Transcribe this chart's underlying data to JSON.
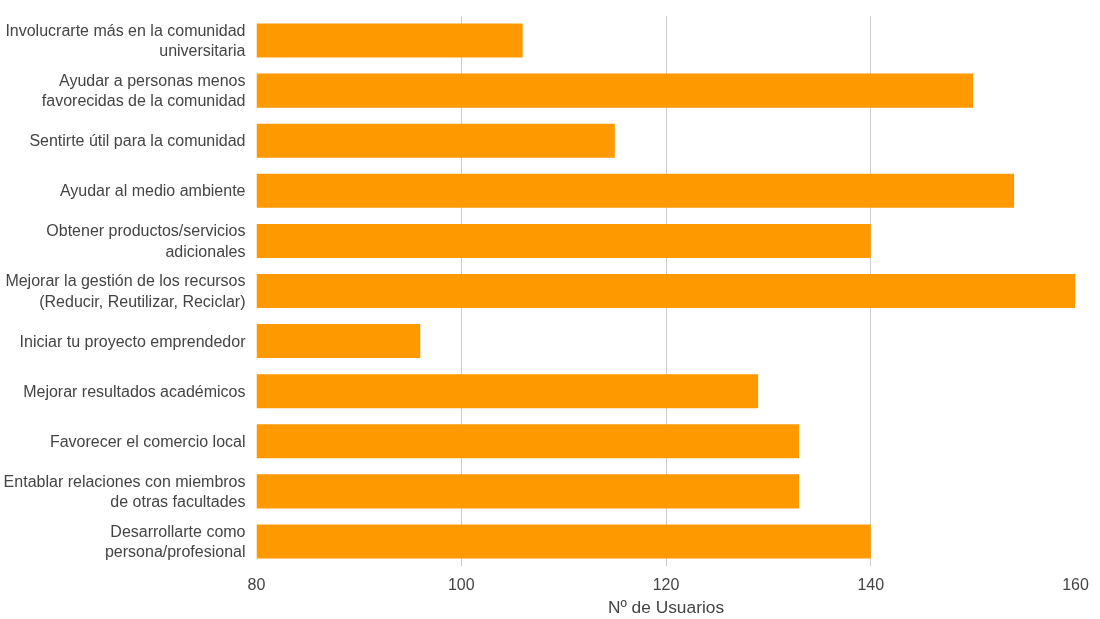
{
  "chart_data": {
    "type": "bar",
    "orientation": "horizontal",
    "xlabel": "Nº de Usuarios",
    "categories": [
      "Involucrarte más en la comunidad universitaria",
      "Ayudar a personas menos favorecidas de la comunidad",
      "Sentirte útil para la comunidad",
      "Ayudar al medio ambiente",
      "Obtener productos/servicios adicionales",
      "Mejorar la gestión de los recursos (Reducir, Reutilizar, Reciclar)",
      "Iniciar tu proyecto emprendedor",
      "Mejorar resultados académicos",
      "Favorecer el comercio local",
      "Entablar relaciones con miembros de otras facultades",
      "Desarrollarte como persona/profesional"
    ],
    "values": [
      106,
      150,
      115,
      154,
      140,
      160,
      96,
      129,
      133,
      133,
      140
    ],
    "color": "#ff9900",
    "xlim": [
      80,
      160
    ],
    "xticks": [
      80,
      100,
      120,
      140,
      160
    ],
    "grid": "x"
  }
}
